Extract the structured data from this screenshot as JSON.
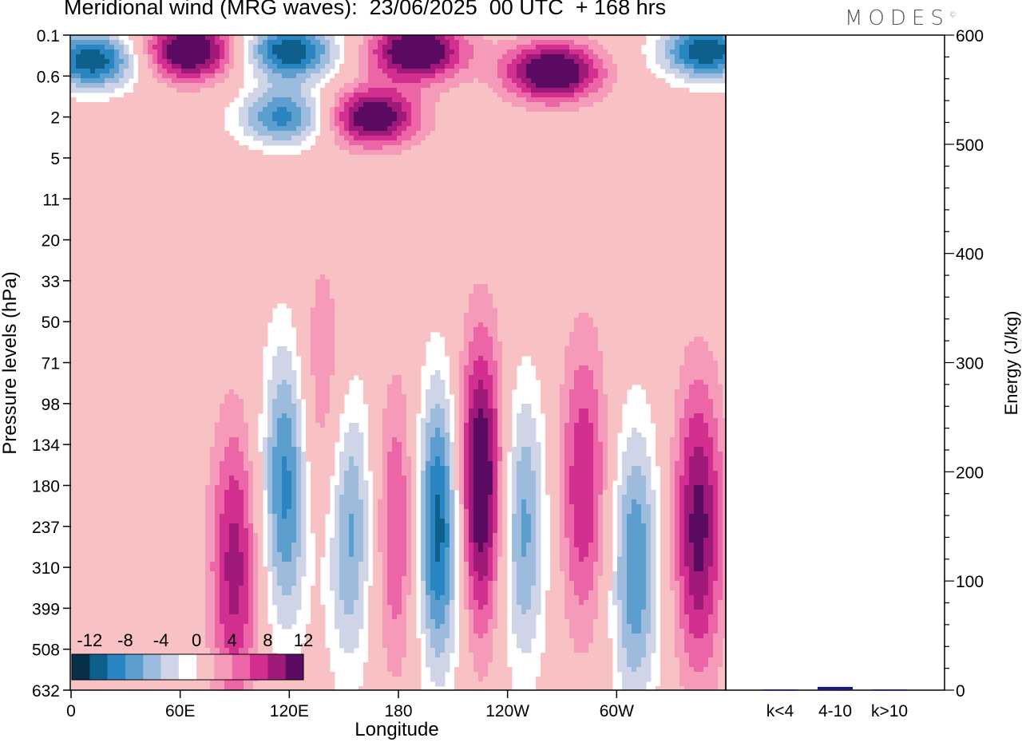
{
  "chart_data": [
    {
      "type": "heatmap",
      "title": "Meridional wind (MRG waves):  23/06/2025  00 UTC  + 168 hrs",
      "xlabel": "Longitude",
      "ylabel": "Pressure levels (hPa)",
      "x_ticks": [
        "0",
        "60E",
        "120E",
        "180",
        "120W",
        "60W"
      ],
      "y_ticks": [
        "0.1",
        "0.6",
        "2",
        "5",
        "11",
        "20",
        "33",
        "50",
        "71",
        "98",
        "134",
        "180",
        "237",
        "310",
        "399",
        "508",
        "632"
      ],
      "colorbar": {
        "labels": [
          "-12",
          "-8",
          "-4",
          "0",
          "4",
          "8",
          "12"
        ],
        "levels": [
          -14,
          -12,
          -10,
          -8,
          -6,
          -4,
          -2,
          2,
          4,
          6,
          8,
          10,
          12,
          14
        ],
        "colors": [
          "#08304a",
          "#0f5f8d",
          "#2a86c2",
          "#5c9fcf",
          "#9dbcdd",
          "#cfd4e6",
          "#ffffff",
          "#f8c2c4",
          "#f59ab8",
          "#ec65a6",
          "#d32f90",
          "#a01a7a",
          "#5c0b63"
        ]
      },
      "features": [
        {
          "sign": "pos",
          "lon": 90,
          "level": 310,
          "amplitude": 9
        },
        {
          "sign": "neg",
          "lon": 118,
          "level": 180,
          "amplitude": -11
        },
        {
          "sign": "pos",
          "lon": 138,
          "level": 98,
          "amplitude": 5
        },
        {
          "sign": "neg",
          "lon": 153,
          "level": 237,
          "amplitude": -9
        },
        {
          "sign": "pos",
          "lon": 180,
          "level": 237,
          "amplitude": 7
        },
        {
          "sign": "neg",
          "lon": 202,
          "level": 237,
          "amplitude": -14
        },
        {
          "sign": "pos",
          "lon": 225,
          "level": 180,
          "amplitude": 14
        },
        {
          "sign": "neg",
          "lon": 248,
          "level": 237,
          "amplitude": -9
        },
        {
          "sign": "pos",
          "lon": 282,
          "level": 180,
          "amplitude": 8
        },
        {
          "sign": "neg",
          "lon": 310,
          "level": 310,
          "amplitude": -10
        },
        {
          "sign": "pos",
          "lon": 345,
          "level": 237,
          "amplitude": 11
        },
        {
          "sign": "neg",
          "lon": 12,
          "level": 0.3,
          "amplitude": -14
        },
        {
          "sign": "pos",
          "lon": 65,
          "level": 0.2,
          "amplitude": 14
        },
        {
          "sign": "neg",
          "lon": 120,
          "level": 0.2,
          "amplitude": -14
        },
        {
          "sign": "pos",
          "lon": 190,
          "level": 0.2,
          "amplitude": 14
        },
        {
          "sign": "pos",
          "lon": 265,
          "level": 0.5,
          "amplitude": 14
        },
        {
          "sign": "neg",
          "lon": 350,
          "level": 0.2,
          "amplitude": -14
        },
        {
          "sign": "pos",
          "lon": 165,
          "level": 2,
          "amplitude": 13
        },
        {
          "sign": "neg",
          "lon": 118,
          "level": 2,
          "amplitude": -11
        }
      ]
    },
    {
      "type": "bar",
      "ylabel": "Energy (J/kg)",
      "categories": [
        "k<4",
        "4-10",
        "k>10"
      ],
      "values": [
        0.5,
        3,
        0.3
      ],
      "ylim": [
        0,
        600
      ],
      "y_ticks": [
        "0",
        "100",
        "200",
        "300",
        "400",
        "500",
        "600"
      ],
      "bar_color": "#1a1a80"
    }
  ],
  "logo": {
    "text": "MODES",
    "mark": "©"
  }
}
